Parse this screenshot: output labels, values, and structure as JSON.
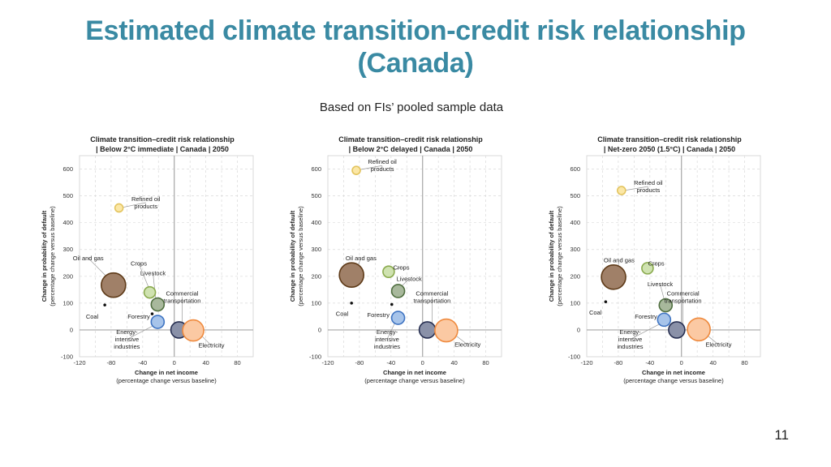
{
  "slide": {
    "title_line1": "Estimated climate transition-credit risk relationship",
    "title_line2": "(Canada)",
    "subtitle": "Based on FIs’ pooled sample data",
    "page_number": "11"
  },
  "chart_data": [
    {
      "type": "scatter",
      "title_line1": "Climate transition–credit risk relationship",
      "title_line2": "| Below 2°C immediate | Canada | 2050",
      "xlabel": "Change in net income",
      "xlabel_sub": "(percentage change versus baseline)",
      "ylabel": "Change in probability of default",
      "ylabel_sub": "(percentage change versus baseline)",
      "xlim": [
        -120,
        100
      ],
      "ylim": [
        -100,
        650
      ],
      "xticks": [
        -120,
        -100,
        -80,
        -60,
        -40,
        -20,
        0,
        20,
        40,
        60,
        80,
        100
      ],
      "xtick_labels": [
        "-120",
        "",
        "-80",
        "",
        "-40",
        "",
        "0",
        "",
        "40",
        "",
        "80",
        ""
      ],
      "yticks": [
        -100,
        0,
        100,
        200,
        300,
        400,
        500,
        600
      ],
      "ytick_labels": [
        "-100",
        "0",
        "100",
        "200",
        "300",
        "400",
        "500",
        "600"
      ],
      "grid": true,
      "points": [
        {
          "name": "Refined oil products",
          "x": -70,
          "y": 455,
          "r": 5,
          "fill": "#fbe7a6",
          "stroke": "#e3c45f"
        },
        {
          "name": "Oil and gas",
          "x": -77,
          "y": 167,
          "r": 15,
          "fill": "#a08068",
          "stroke": "#5e3a18"
        },
        {
          "name": "Crops",
          "x": -31,
          "y": 140,
          "r": 7,
          "fill": "#cfe2b0",
          "stroke": "#8aaa4e"
        },
        {
          "name": "Livestock",
          "x": -21,
          "y": 95,
          "r": 8,
          "fill": "#a8b89c",
          "stroke": "#4f6e3f"
        },
        {
          "name": "Coal",
          "x": -88,
          "y": 93,
          "r": 1.6,
          "fill": "#111111",
          "stroke": "#111111"
        },
        {
          "name": "Forestry",
          "x": -28,
          "y": 60,
          "r": 1.6,
          "fill": "#111111",
          "stroke": "#111111"
        },
        {
          "name": "Energy-intensive industries",
          "x": -21,
          "y": 30,
          "r": 8,
          "fill": "#a7c4ea",
          "stroke": "#3f74c2"
        },
        {
          "name": "Commercial transportation",
          "x": 6,
          "y": 0,
          "r": 10,
          "fill": "#8a91a8",
          "stroke": "#283052"
        },
        {
          "name": "Electricity",
          "x": 24,
          "y": -2,
          "r": 13,
          "fill": "#fbc9a3",
          "stroke": "#ef8a3e"
        }
      ],
      "labels": [
        {
          "text": [
            "Refined oil",
            "products"
          ],
          "x": -36,
          "y": 475,
          "ax": -69,
          "ay": 455
        },
        {
          "text": [
            "Oil and gas"
          ],
          "x": -109,
          "y": 268,
          "ax": -80,
          "ay": 182
        },
        {
          "text": [
            "Crops"
          ],
          "x": -45,
          "y": 248,
          "ax": -31,
          "ay": 148
        },
        {
          "text": [
            "Livestock"
          ],
          "x": -27,
          "y": 212,
          "ax": -23,
          "ay": 104
        },
        {
          "text": [
            "Coal"
          ],
          "x": -104,
          "y": 50,
          "ax": null,
          "ay": null
        },
        {
          "text": [
            "Forestry"
          ],
          "x": -45,
          "y": 50,
          "ax": null,
          "ay": null
        },
        {
          "text": [
            "Commercial",
            "transportation"
          ],
          "x": 10,
          "y": 123,
          "ax": 10,
          "ay": 12
        },
        {
          "text": [
            "Energy-",
            "intensive",
            "industries"
          ],
          "x": -60,
          "y": -35,
          "ax": -25,
          "ay": 18
        },
        {
          "text": [
            "Electricity"
          ],
          "x": 47,
          "y": -58,
          "ax": 32,
          "ay": -14
        }
      ]
    },
    {
      "type": "scatter",
      "title_line1": "Climate transition–credit risk relationship",
      "title_line2": "| Below 2°C delayed | Canada | 2050",
      "xlabel": "Change in net income",
      "xlabel_sub": "(percentage change versus baseline)",
      "ylabel": "Change in probability of default",
      "ylabel_sub": "(percentage change versus baseline)",
      "xlim": [
        -120,
        100
      ],
      "ylim": [
        -100,
        650
      ],
      "xticks": [
        -120,
        -100,
        -80,
        -60,
        -40,
        -20,
        0,
        20,
        40,
        60,
        80,
        100
      ],
      "xtick_labels": [
        "-120",
        "",
        "-80",
        "",
        "-40",
        "",
        "0",
        "",
        "40",
        "",
        "80",
        ""
      ],
      "yticks": [
        -100,
        0,
        100,
        200,
        300,
        400,
        500,
        600
      ],
      "ytick_labels": [
        "-100",
        "0",
        "100",
        "200",
        "300",
        "400",
        "500",
        "600"
      ],
      "grid": true,
      "points": [
        {
          "name": "Refined oil products",
          "x": -84,
          "y": 595,
          "r": 5,
          "fill": "#fbe7a6",
          "stroke": "#e3c45f"
        },
        {
          "name": "Oil and gas",
          "x": -90,
          "y": 205,
          "r": 15,
          "fill": "#a08068",
          "stroke": "#5e3a18"
        },
        {
          "name": "Crops",
          "x": -43,
          "y": 217,
          "r": 7,
          "fill": "#cfe2b0",
          "stroke": "#8aaa4e"
        },
        {
          "name": "Livestock",
          "x": -31,
          "y": 145,
          "r": 8,
          "fill": "#a8b89c",
          "stroke": "#4f6e3f"
        },
        {
          "name": "Coal",
          "x": -90,
          "y": 100,
          "r": 1.6,
          "fill": "#111111",
          "stroke": "#111111"
        },
        {
          "name": "Forestry",
          "x": -39,
          "y": 95,
          "r": 1.6,
          "fill": "#111111",
          "stroke": "#111111"
        },
        {
          "name": "Energy-intensive industries",
          "x": -31,
          "y": 45,
          "r": 8,
          "fill": "#a7c4ea",
          "stroke": "#3f74c2"
        },
        {
          "name": "Commercial transportation",
          "x": 6,
          "y": 0,
          "r": 10,
          "fill": "#8a91a8",
          "stroke": "#283052"
        },
        {
          "name": "Electricity",
          "x": 30,
          "y": -2,
          "r": 14,
          "fill": "#fbc9a3",
          "stroke": "#ef8a3e"
        }
      ],
      "labels": [
        {
          "text": [
            "Refined oil",
            "products"
          ],
          "x": -51,
          "y": 613,
          "ax": -81,
          "ay": 597
        },
        {
          "text": [
            "Oil and gas"
          ],
          "x": -78,
          "y": 268,
          "ax": -84,
          "ay": 225
        },
        {
          "text": [
            "Crops"
          ],
          "x": -27,
          "y": 233,
          "ax": -40,
          "ay": 222
        },
        {
          "text": [
            "Livestock"
          ],
          "x": -17,
          "y": 190,
          "ax": -29,
          "ay": 157
        },
        {
          "text": [
            "Coal"
          ],
          "x": -102,
          "y": 60,
          "ax": null,
          "ay": null
        },
        {
          "text": [
            "Forestry"
          ],
          "x": -56,
          "y": 55,
          "ax": null,
          "ay": null
        },
        {
          "text": [
            "Commercial",
            "transportation"
          ],
          "x": 12,
          "y": 123,
          "ax": 12,
          "ay": 14
        },
        {
          "text": [
            "Energy-",
            "intensive",
            "industries"
          ],
          "x": -45,
          "y": -35,
          "ax": -34,
          "ay": 33
        },
        {
          "text": [
            "Electricity"
          ],
          "x": 57,
          "y": -55,
          "ax": 40,
          "ay": -16
        }
      ]
    },
    {
      "type": "scatter",
      "title_line1": "Climate transition–credit risk relationship",
      "title_line2": "| Net-zero 2050 (1.5°C) | Canada | 2050",
      "xlabel": "Change in net income",
      "xlabel_sub": "(percentage change versus baseline)",
      "ylabel": "Change in probability of default",
      "ylabel_sub": "(percentage change versus baseline)",
      "xlim": [
        -120,
        100
      ],
      "ylim": [
        -100,
        650
      ],
      "xticks": [
        -120,
        -100,
        -80,
        -60,
        -40,
        -20,
        0,
        20,
        40,
        60,
        80,
        100
      ],
      "xtick_labels": [
        "-120",
        "",
        "-80",
        "",
        "-40",
        "",
        "0",
        "",
        "40",
        "",
        "80",
        ""
      ],
      "yticks": [
        -100,
        0,
        100,
        200,
        300,
        400,
        500,
        600
      ],
      "ytick_labels": [
        "-100",
        "0",
        "100",
        "200",
        "300",
        "400",
        "500",
        "600"
      ],
      "grid": true,
      "points": [
        {
          "name": "Refined oil products",
          "x": -76,
          "y": 520,
          "r": 5,
          "fill": "#fbe7a6",
          "stroke": "#e3c45f"
        },
        {
          "name": "Oil and gas",
          "x": -86,
          "y": 197,
          "r": 15,
          "fill": "#a08068",
          "stroke": "#5e3a18"
        },
        {
          "name": "Crops",
          "x": -43,
          "y": 230,
          "r": 7,
          "fill": "#cfe2b0",
          "stroke": "#8aaa4e"
        },
        {
          "name": "Livestock",
          "x": -20,
          "y": 92,
          "r": 8,
          "fill": "#a8b89c",
          "stroke": "#4f6e3f"
        },
        {
          "name": "Coal",
          "x": -96,
          "y": 105,
          "r": 1.6,
          "fill": "#111111",
          "stroke": "#111111"
        },
        {
          "name": "Forestry",
          "x": -10,
          "y": 12,
          "r": 1.6,
          "fill": "#111111",
          "stroke": "#111111"
        },
        {
          "name": "Energy-intensive industries",
          "x": -22,
          "y": 38,
          "r": 8,
          "fill": "#a7c4ea",
          "stroke": "#3f74c2"
        },
        {
          "name": "Commercial transportation",
          "x": -6,
          "y": 0,
          "r": 10,
          "fill": "#8a91a8",
          "stroke": "#283052"
        },
        {
          "name": "Electricity",
          "x": 22,
          "y": 2,
          "r": 14,
          "fill": "#fbc9a3",
          "stroke": "#ef8a3e"
        }
      ],
      "labels": [
        {
          "text": [
            "Refined oil",
            "products"
          ],
          "x": -42,
          "y": 535,
          "ax": -73,
          "ay": 520
        },
        {
          "text": [
            "Oil and gas"
          ],
          "x": -79,
          "y": 260,
          "ax": -81,
          "ay": 220
        },
        {
          "text": [
            "Crops"
          ],
          "x": -32,
          "y": 248,
          "ax": -40,
          "ay": 234
        },
        {
          "text": [
            "Livestock"
          ],
          "x": -27,
          "y": 170,
          "ax": -21,
          "ay": 104
        },
        {
          "text": [
            "Coal"
          ],
          "x": -109,
          "y": 65,
          "ax": null,
          "ay": null
        },
        {
          "text": [
            "Forestry"
          ],
          "x": -45,
          "y": 50,
          "ax": null,
          "ay": null
        },
        {
          "text": [
            "Commercial",
            "transportation"
          ],
          "x": 2,
          "y": 123,
          "ax": 2,
          "ay": 10
        },
        {
          "text": [
            "Energy-",
            "intensive",
            "industries"
          ],
          "x": -65,
          "y": -35,
          "ax": -25,
          "ay": 26
        },
        {
          "text": [
            "Electricity"
          ],
          "x": 47,
          "y": -55,
          "ax": 30,
          "ay": -14
        }
      ]
    }
  ]
}
